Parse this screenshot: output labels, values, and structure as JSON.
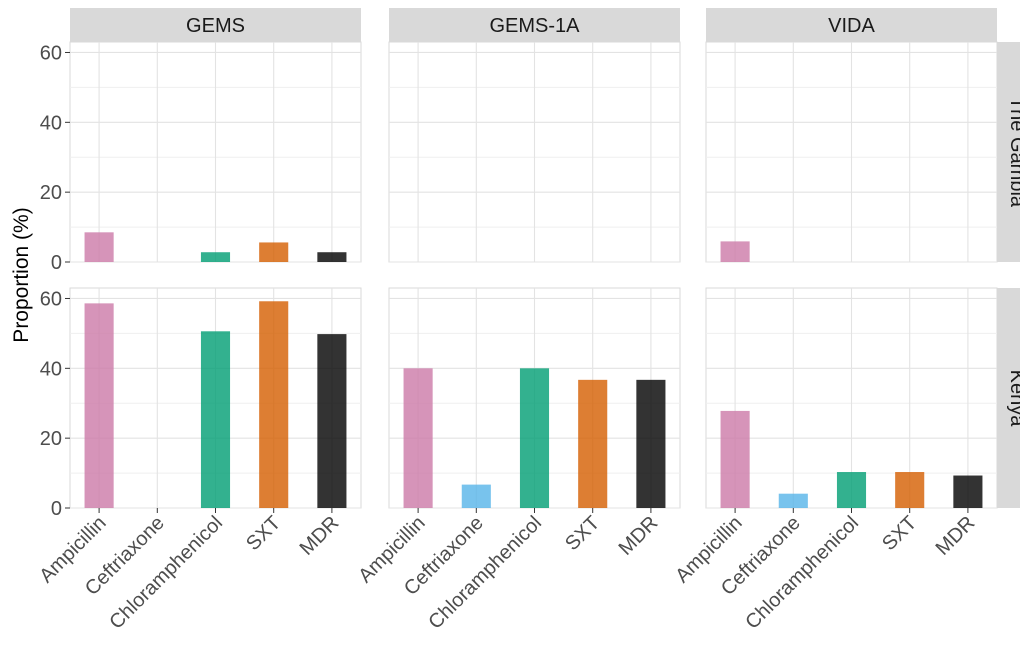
{
  "chart_data": {
    "type": "bar",
    "ylabel": "Proportion (%)",
    "ylim": [
      0,
      63
    ],
    "yticks": [
      0,
      20,
      40,
      60
    ],
    "categories": [
      "Ampicillin",
      "Ceftriaxone",
      "Chloramphenicol",
      "SXT",
      "MDR"
    ],
    "bar_colors": [
      "#CC79A7",
      "#56B4E9",
      "#009E73",
      "#D55E00",
      "#000000"
    ],
    "grid": true,
    "facet_columns": [
      "GEMS",
      "GEMS-1A",
      "VIDA"
    ],
    "facet_rows": [
      "The Gambia",
      "Kenya"
    ],
    "panels": [
      {
        "column": "GEMS",
        "row": "The Gambia",
        "values": [
          8.5,
          0,
          2.8,
          5.6,
          2.8
        ]
      },
      {
        "column": "GEMS-1A",
        "row": "The Gambia",
        "values": [
          0,
          0,
          0,
          0,
          0
        ]
      },
      {
        "column": "VIDA",
        "row": "The Gambia",
        "values": [
          5.9,
          0,
          0,
          0,
          0
        ]
      },
      {
        "column": "GEMS",
        "row": "Kenya",
        "values": [
          58.6,
          0,
          50.6,
          59.2,
          49.8
        ]
      },
      {
        "column": "GEMS-1A",
        "row": "Kenya",
        "values": [
          40,
          6.7,
          40,
          36.7,
          36.7
        ]
      },
      {
        "column": "VIDA",
        "row": "Kenya",
        "values": [
          27.8,
          4.1,
          10.3,
          10.3,
          9.3
        ]
      }
    ]
  }
}
